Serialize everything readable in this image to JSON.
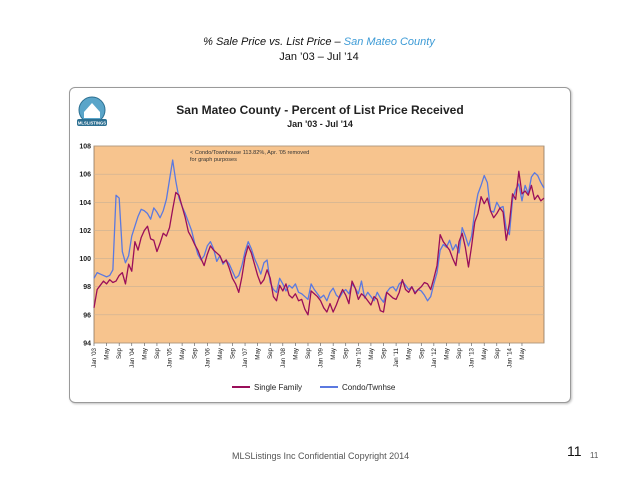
{
  "slide": {
    "title_prefix": "% Sale Price vs. List Price – ",
    "title_county": "San Mateo County",
    "subtitle": "Jan ’03 – Jul ’14",
    "footer": "MLSListings Inc Confidential Copyright 2014",
    "page_number_large": "11",
    "page_number_small": "11"
  },
  "logo": {
    "text": "MLSLISTINGS"
  },
  "colors": {
    "plot_background": "#f7c48e",
    "single_family": "#9a0e5a",
    "condo": "#5b79e0",
    "gridline": "#c9b095",
    "title_text": "#3d9bd6"
  },
  "chart_data": {
    "type": "line",
    "title": "San Mateo County - Percent of List Price Received",
    "subtitle": "Jan '03 - Jul '14",
    "annotation": "< Condo/Townhouse 113.82%, Apr. '05 removed for graph purposes",
    "ylim": [
      94,
      108
    ],
    "yticks": [
      94,
      96,
      98,
      100,
      102,
      104,
      106,
      108
    ],
    "xlabel": "",
    "ylabel": "",
    "legend_position": "bottom",
    "x_tick_labels": [
      "Jan '03",
      "May",
      "Sep",
      "Jan '04",
      "May",
      "Sep",
      "Jan '05",
      "May",
      "Sep",
      "Jan '06",
      "May",
      "Sep",
      "Jan '07",
      "May",
      "Sep",
      "Jan '08",
      "May",
      "Sep",
      "Jan '09",
      "May",
      "Sep",
      "Jan '10",
      "May",
      "Sep",
      "Jan '11",
      "May",
      "Sep",
      "Jan '12",
      "May",
      "Sep",
      "Jan '13",
      "May",
      "Sep",
      "Jan '14",
      "May"
    ],
    "series": [
      {
        "name": "Single Family",
        "values": [
          96.5,
          97.8,
          98.1,
          98.4,
          98.2,
          98.5,
          98.3,
          98.4,
          98.8,
          99.0,
          98.2,
          99.6,
          99.1,
          101.2,
          100.6,
          101.5,
          102.0,
          102.3,
          101.4,
          101.3,
          100.5,
          101.1,
          101.8,
          101.6,
          102.2,
          103.5,
          104.7,
          104.5,
          103.7,
          102.9,
          101.9,
          101.5,
          101.0,
          100.6,
          100.0,
          99.5,
          100.3,
          100.9,
          100.6,
          100.4,
          100.2,
          99.7,
          99.9,
          99.3,
          98.6,
          98.2,
          97.6,
          98.7,
          100.1,
          100.9,
          100.4,
          99.6,
          98.8,
          98.2,
          98.5,
          99.2,
          98.6,
          97.3,
          97.0,
          98.1,
          97.7,
          98.2,
          97.4,
          97.2,
          97.5,
          97.0,
          97.1,
          96.4,
          96.0,
          97.7,
          97.5,
          97.3,
          97.0,
          96.5,
          96.2,
          96.8,
          96.2,
          96.7,
          97.3,
          97.8,
          97.4,
          96.8,
          98.4,
          97.9,
          97.1,
          97.5,
          97.3,
          97.0,
          96.7,
          97.3,
          97.1,
          96.3,
          96.2,
          97.6,
          97.4,
          97.2,
          97.1,
          97.6,
          98.5,
          97.8,
          97.6,
          98.0,
          97.5,
          97.8,
          98.0,
          98.3,
          98.2,
          97.8,
          98.6,
          99.5,
          101.7,
          101.2,
          100.9,
          100.6,
          100.0,
          99.5,
          101.2,
          101.8,
          100.8,
          99.4,
          100.9,
          102.6,
          103.2,
          104.4,
          103.9,
          104.3,
          103.4,
          102.9,
          103.2,
          103.6,
          103.3,
          101.3,
          102.5,
          104.6,
          104.2,
          106.2,
          104.6,
          104.8,
          104.5,
          105.2,
          104.2,
          104.5,
          104.1,
          104.3
        ],
        "color": "#9a0e5a"
      },
      {
        "name": "Condo/Twnhse",
        "values": [
          98.6,
          99.0,
          98.9,
          98.8,
          98.7,
          98.8,
          99.2,
          104.5,
          104.3,
          100.5,
          99.7,
          100.2,
          101.6,
          102.3,
          103.0,
          103.5,
          103.4,
          103.2,
          102.8,
          103.6,
          103.3,
          102.9,
          103.4,
          104.2,
          105.6,
          107.0,
          105.5,
          104.3,
          103.7,
          103.2,
          102.6,
          102.0,
          101.1,
          100.3,
          99.9,
          100.2,
          100.9,
          101.2,
          100.7,
          99.8,
          100.2,
          99.6,
          99.9,
          99.6,
          99.1,
          98.6,
          98.8,
          99.5,
          100.5,
          101.2,
          100.7,
          100.0,
          99.5,
          98.9,
          99.7,
          99.9,
          98.3,
          97.8,
          97.6,
          98.6,
          98.2,
          97.7,
          98.1,
          97.9,
          98.2,
          97.6,
          97.5,
          97.3,
          97.1,
          98.2,
          97.8,
          97.5,
          97.2,
          97.4,
          97.0,
          97.6,
          97.9,
          97.4,
          97.2,
          97.6,
          97.8,
          97.5,
          98.2,
          97.9,
          97.5,
          98.4,
          97.2,
          97.6,
          97.3,
          97.0,
          97.6,
          97.2,
          96.9,
          97.6,
          97.9,
          98.0,
          97.7,
          98.2,
          98.4,
          98.1,
          97.8,
          98.0,
          97.6,
          97.8,
          97.7,
          97.4,
          97.0,
          97.3,
          98.2,
          99.0,
          100.6,
          101.0,
          100.8,
          101.3,
          100.6,
          101.0,
          100.4,
          102.2,
          101.6,
          100.9,
          101.6,
          103.4,
          104.6,
          105.2,
          105.9,
          105.4,
          103.4,
          103.3,
          104.0,
          103.6,
          103.7,
          102.1,
          101.7,
          104.2,
          104.9,
          105.3,
          104.1,
          105.2,
          104.6,
          105.8,
          106.1,
          105.9,
          105.4,
          105.0
        ],
        "color": "#5b79e0"
      }
    ],
    "legend": [
      "Single Family",
      "Condo/Twnhse"
    ]
  }
}
